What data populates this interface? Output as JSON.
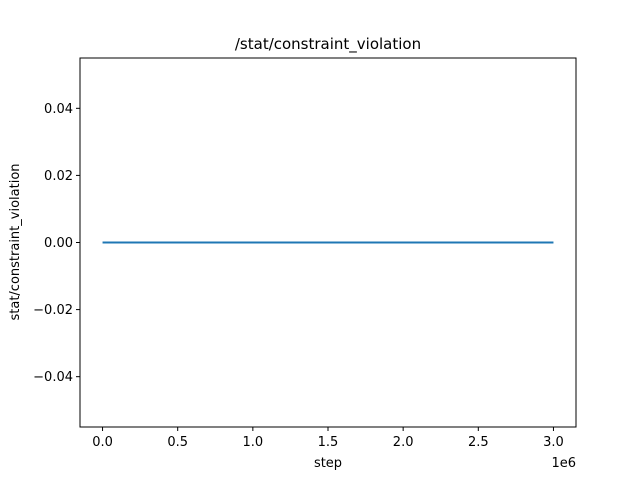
{
  "chart_data": {
    "type": "line",
    "title": "/stat/constraint_violation",
    "xlabel": "step",
    "ylabel": "stat/constraint_violation",
    "x_offset_label": "1e6",
    "x_scale": 1000000,
    "xlim": [
      -150000,
      3150000
    ],
    "ylim": [
      -0.055,
      0.055
    ],
    "xticks": [
      0,
      0.5,
      1.0,
      1.5,
      2.0,
      2.5,
      3.0
    ],
    "xtick_labels": [
      "0.0",
      "0.5",
      "1.0",
      "1.5",
      "2.0",
      "2.5",
      "3.0"
    ],
    "yticks": [
      -0.04,
      -0.02,
      0.0,
      0.02,
      0.04
    ],
    "ytick_labels": [
      "−0.04",
      "−0.02",
      "0.00",
      "0.02",
      "0.04"
    ],
    "grid": false,
    "series": [
      {
        "color": "#1f77b4",
        "x": [
          0,
          3000000
        ],
        "y": [
          0,
          0
        ]
      }
    ]
  }
}
